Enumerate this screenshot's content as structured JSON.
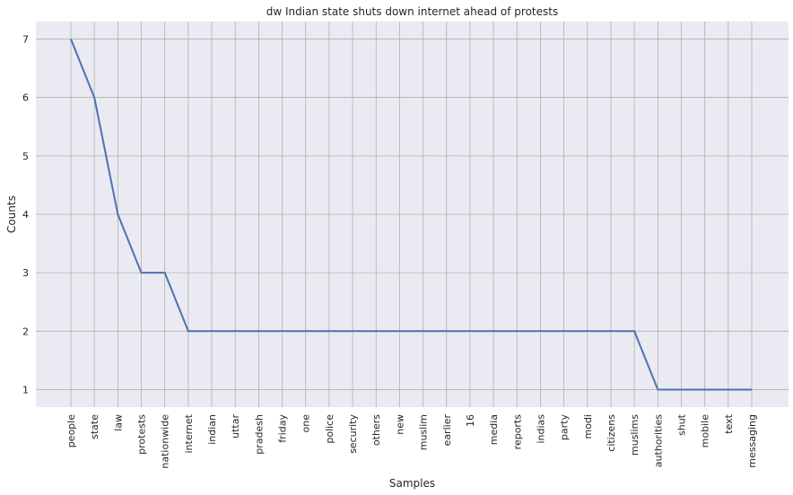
{
  "chart_data": {
    "type": "line",
    "title": "dw Indian state shuts down internet ahead of protests",
    "xlabel": "Samples",
    "ylabel": "Counts",
    "categories": [
      "people",
      "state",
      "law",
      "protests",
      "nationwide",
      "internet",
      "indian",
      "uttar",
      "pradesh",
      "friday",
      "one",
      "police",
      "security",
      "others",
      "new",
      "muslim",
      "earlier",
      "16",
      "media",
      "reports",
      "indias",
      "party",
      "modi",
      "citizens",
      "muslims",
      "authorities",
      "shut",
      "mobile",
      "text",
      "messaging"
    ],
    "values": [
      7,
      6,
      4,
      3,
      3,
      2,
      2,
      2,
      2,
      2,
      2,
      2,
      2,
      2,
      2,
      2,
      2,
      2,
      2,
      2,
      2,
      2,
      2,
      2,
      2,
      1,
      1,
      1,
      1,
      1
    ],
    "y_ticks": [
      1,
      2,
      3,
      4,
      5,
      6,
      7
    ],
    "ylim": [
      0.7,
      7.3
    ],
    "grid": true,
    "line_color": "#4c72b0",
    "background_color": "#eaeaf2",
    "grid_color": "#b0b0b0"
  }
}
